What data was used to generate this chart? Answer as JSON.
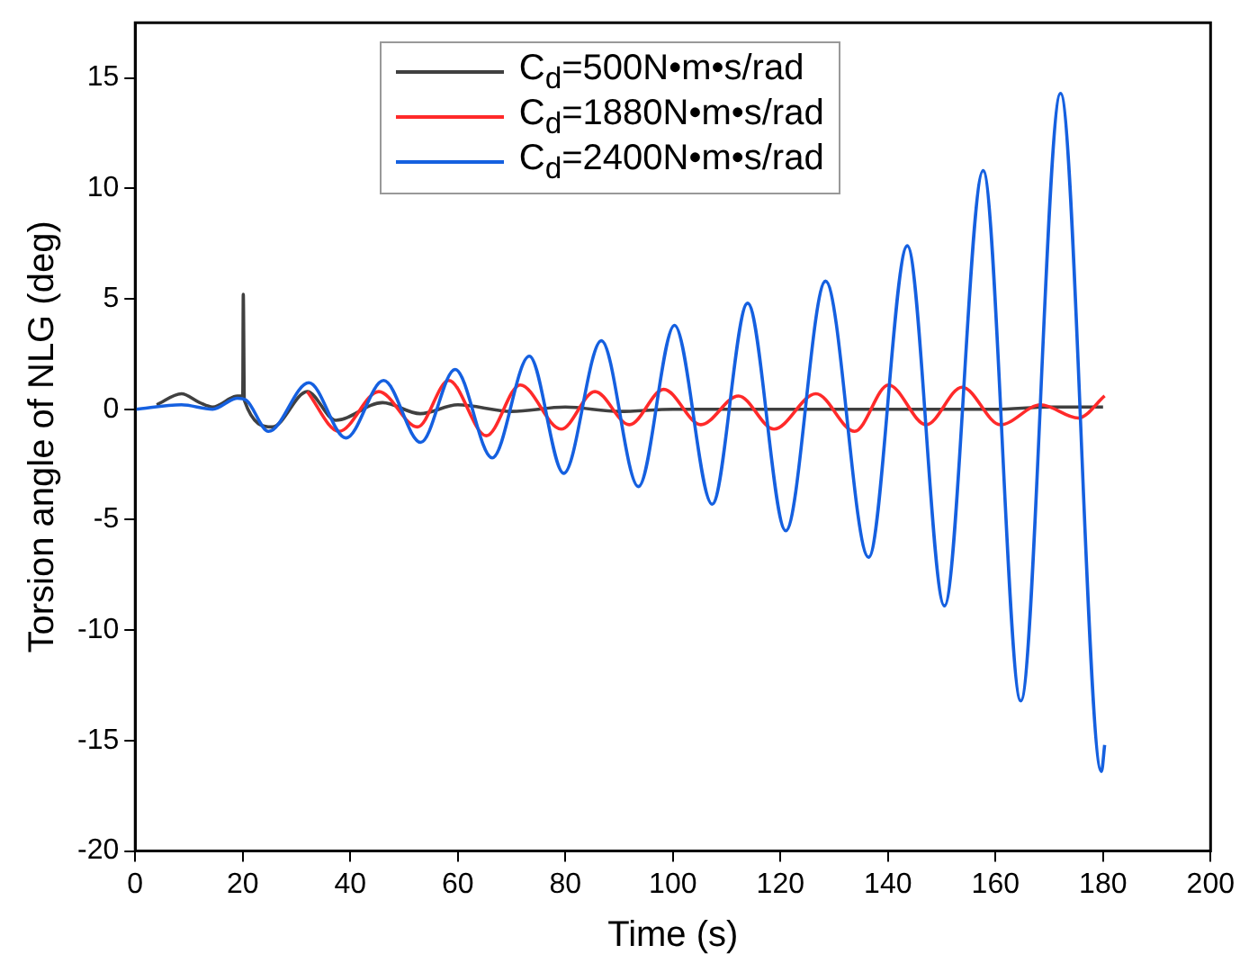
{
  "chart_data": {
    "type": "line",
    "xlabel": "Time (s)",
    "ylabel": "Torsion angle of NLG (deg)",
    "xlim": [
      0,
      200
    ],
    "xticks": [
      0,
      20,
      40,
      60,
      80,
      100,
      120,
      140,
      160,
      180,
      200
    ],
    "ylim": [
      -20,
      17.5
    ],
    "yticks": [
      -20,
      -15,
      -10,
      -5,
      0,
      5,
      10,
      15
    ],
    "grid": false,
    "legend": "top",
    "marker": "none",
    "line_style": "solid",
    "series": [
      {
        "name": "C$_{d}$=500N•m•s/rad",
        "color": "#404040",
        "x": [
          4,
          8.6,
          12,
          14.4,
          19,
          20,
          20.1,
          20.3,
          25.5,
          32,
          37.3,
          46,
          53,
          60,
          70,
          80,
          90,
          100,
          110,
          120,
          130,
          140,
          150,
          160,
          170,
          180
        ],
        "values": [
          0.2,
          0.7,
          0.3,
          0.1,
          0.6,
          0.6,
          5.2,
          0.4,
          -0.8,
          0.8,
          -0.5,
          0.3,
          -0.2,
          0.2,
          -0.1,
          0.1,
          -0.1,
          0,
          0,
          0,
          0,
          0,
          0,
          0,
          0.1,
          0.1
        ]
      },
      {
        "name": "C$_{d}$=1880N•m•s/rad",
        "color": "#ff2a2a",
        "x": [
          32,
          37.9,
          45.3,
          52.5,
          58.3,
          65.3,
          71.6,
          79.2,
          85.5,
          91.9,
          98.3,
          105.2,
          112.2,
          118.8,
          126.6,
          133.8,
          140.1,
          147.1,
          153.8,
          160.9,
          168.4,
          175.4,
          180.3
        ],
        "values": [
          0.8,
          -1,
          0.8,
          -0.8,
          1.3,
          -1.2,
          1.1,
          -0.9,
          0.8,
          -0.7,
          0.9,
          -0.7,
          0.6,
          -0.9,
          0.7,
          -1,
          1.1,
          -0.7,
          1,
          -0.7,
          0.2,
          -0.4,
          0.6
        ]
      },
      {
        "name": "C$_{d}$=2400N•m•s/rad",
        "color": "#1560e0",
        "x": [
          0,
          8.6,
          14.4,
          19,
          20.7,
          24.8,
          32.3,
          39.2,
          46.2,
          53.1,
          59.5,
          66.4,
          73.3,
          79.7,
          86.7,
          93.6,
          100.3,
          107.3,
          113.9,
          121,
          128.4,
          136.4,
          143.6,
          150.5,
          157.7,
          164.7,
          172.1,
          179.7,
          180.3
        ],
        "values": [
          0,
          0.2,
          0,
          0.5,
          0.4,
          -1,
          1.2,
          -1.3,
          1.3,
          -1.5,
          1.8,
          -2.2,
          2.4,
          -2.9,
          3.1,
          -3.5,
          3.8,
          -4.3,
          4.8,
          -5.5,
          5.8,
          -6.7,
          7.4,
          -8.9,
          10.8,
          -13.2,
          14.3,
          -16.4,
          -15.2
        ]
      }
    ]
  }
}
